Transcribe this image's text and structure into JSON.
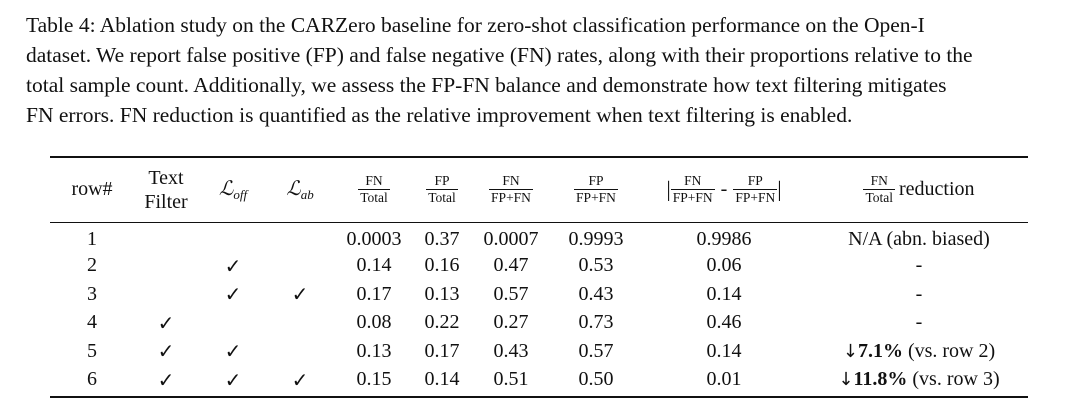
{
  "caption": {
    "lines": [
      "Table 4: Ablation study on the CARZero baseline for zero-shot classification performance on the Open-I",
      "dataset. We report false positive (FP) and false negative (FN) rates, along with their proportions relative to the",
      "total sample count. Additionally, we assess the FP-FN balance and demonstrate how text filtering mitigates",
      "FN errors. FN reduction is quantified as the relative improvement when text filtering is enabled."
    ]
  },
  "table": {
    "headers": {
      "row_num": "row#",
      "text_filter_line1": "Text",
      "text_filter_line2": "Filter",
      "l_off_symbol": "ℒ",
      "l_off_sub": "off",
      "l_ab_symbol": "ℒ",
      "l_ab_sub": "ab",
      "fn_total_num": "FN",
      "fn_total_den": "Total",
      "fp_total_num": "FP",
      "fp_total_den": "Total",
      "fn_ratio_num": "FN",
      "fn_ratio_den": "FP+FN",
      "fp_ratio_num": "FP",
      "fp_ratio_den": "FP+FN",
      "diff_left_bar": "|",
      "diff_a_num": "FN",
      "diff_a_den": "FP+FN",
      "diff_minus": "-",
      "diff_b_num": "FP",
      "diff_b_den": "FP+FN",
      "diff_right_bar": "|",
      "red_num": "FN",
      "red_den": "Total",
      "red_word": "reduction"
    },
    "check_mark": "✓",
    "rows": [
      {
        "row": "1",
        "text_filter": "",
        "l_off": "",
        "l_ab": "",
        "fn_total": "0.0003",
        "fp_total": "0.37",
        "fn_ratio": "0.0007",
        "fp_ratio": "0.9993",
        "diff": "0.9986",
        "red_arrow": "",
        "red_value": "",
        "red_note": "N/A (abn. biased)"
      },
      {
        "row": "2",
        "text_filter": "",
        "l_off": "✓",
        "l_ab": "",
        "fn_total": "0.14",
        "fp_total": "0.16",
        "fn_ratio": "0.47",
        "fp_ratio": "0.53",
        "diff": "0.06",
        "red_arrow": "",
        "red_value": "",
        "red_note": "-"
      },
      {
        "row": "3",
        "text_filter": "",
        "l_off": "✓",
        "l_ab": "✓",
        "fn_total": "0.17",
        "fp_total": "0.13",
        "fn_ratio": "0.57",
        "fp_ratio": "0.43",
        "diff": "0.14",
        "red_arrow": "",
        "red_value": "",
        "red_note": "-"
      },
      {
        "row": "4",
        "text_filter": "✓",
        "l_off": "",
        "l_ab": "",
        "fn_total": "0.08",
        "fp_total": "0.22",
        "fn_ratio": "0.27",
        "fp_ratio": "0.73",
        "diff": "0.46",
        "red_arrow": "",
        "red_value": "",
        "red_note": "-"
      },
      {
        "row": "5",
        "text_filter": "✓",
        "l_off": "✓",
        "l_ab": "",
        "fn_total": "0.13",
        "fp_total": "0.17",
        "fn_ratio": "0.43",
        "fp_ratio": "0.57",
        "diff": "0.14",
        "red_arrow": "↓",
        "red_value": "7.1%",
        "red_note": " (vs. row 2)"
      },
      {
        "row": "6",
        "text_filter": "✓",
        "l_off": "✓",
        "l_ab": "✓",
        "fn_total": "0.15",
        "fp_total": "0.14",
        "fn_ratio": "0.51",
        "fp_ratio": "0.50",
        "diff": "0.01",
        "red_arrow": "↓",
        "red_value": "11.8%",
        "red_note": " (vs. row 3)"
      }
    ]
  }
}
